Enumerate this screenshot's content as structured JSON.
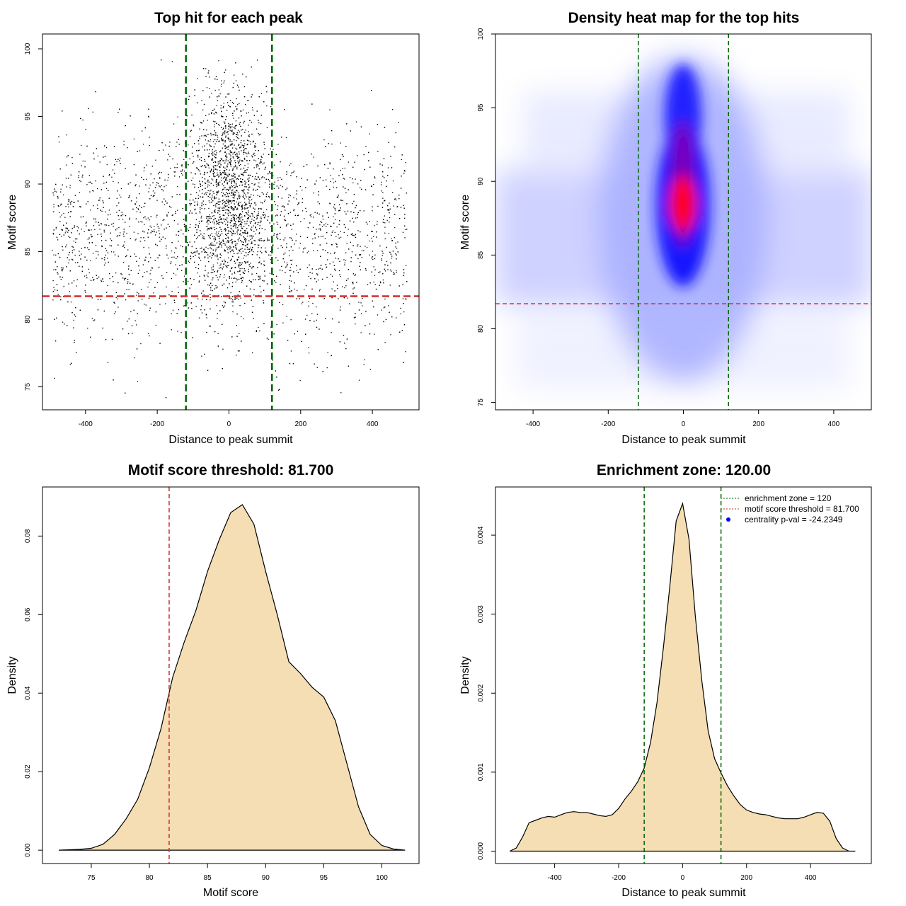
{
  "chart_data": [
    {
      "id": "scatter",
      "type": "scatter",
      "title": "Top hit for each peak",
      "xlabel": "Distance to peak summit",
      "ylabel": "Motif score",
      "xlim": [
        -520,
        530
      ],
      "ylim": [
        73.3,
        101.1
      ],
      "xticks": [
        -400,
        -200,
        0,
        200,
        400
      ],
      "yticks": [
        75,
        80,
        85,
        90,
        95,
        100
      ],
      "point_count": 5200,
      "point_color": "#000000",
      "vlines": [
        -120,
        120
      ],
      "hlines": [
        81.7
      ],
      "vline_color": "#006400",
      "hline_color": "#d22c2c"
    },
    {
      "id": "heatmap",
      "type": "heatmap",
      "title": "Density heat map for the top hits",
      "xlabel": "Distance to peak summit",
      "ylabel": "Motif score",
      "xlim": [
        -500,
        500
      ],
      "ylim": [
        74.5,
        100
      ],
      "xticks": [
        -400,
        -200,
        0,
        200,
        400
      ],
      "yticks": [
        75,
        80,
        85,
        90,
        95,
        100
      ],
      "colors": [
        "#ffffff",
        "#0000ff",
        "#ff0000"
      ],
      "vlines": [
        -120,
        120
      ],
      "hlines": [
        81.7
      ],
      "vline_color": "#006400",
      "hline_color": "#d22c2c"
    },
    {
      "id": "score_density",
      "type": "area",
      "title": "Motif score threshold: 81.700",
      "xlabel": "Motif score",
      "ylabel": "Density",
      "xlim": [
        70.8,
        103.2
      ],
      "ylim": [
        -0.0034,
        0.0925
      ],
      "xticks": [
        75,
        80,
        85,
        90,
        95,
        100
      ],
      "yticks": [
        0.0,
        0.02,
        0.04,
        0.06,
        0.08
      ],
      "ytick_labels": [
        "0.00",
        "0.02",
        "0.04",
        "0.06",
        "0.08"
      ],
      "fill_color": "#f5deb3",
      "x": [
        72.2,
        74,
        75,
        76,
        77,
        78,
        79,
        80,
        81,
        82,
        83,
        84,
        85,
        86,
        87,
        88,
        89,
        90,
        91,
        92,
        93,
        94,
        95,
        96,
        97,
        98,
        99,
        100,
        101,
        102
      ],
      "values": [
        0.0,
        0.0002,
        0.0005,
        0.0015,
        0.004,
        0.008,
        0.013,
        0.021,
        0.031,
        0.044,
        0.053,
        0.061,
        0.071,
        0.079,
        0.086,
        0.088,
        0.083,
        0.071,
        0.06,
        0.048,
        0.045,
        0.0415,
        0.039,
        0.033,
        0.022,
        0.011,
        0.004,
        0.0012,
        0.0003,
        0.0
      ],
      "vlines": [
        81.7
      ],
      "vline_color": "#d22c2c"
    },
    {
      "id": "distance_density",
      "type": "area",
      "title": "Enrichment zone: 120.00",
      "xlabel": "Distance to peak summit",
      "ylabel": "Density",
      "xlim": [
        -585,
        590
      ],
      "ylim": [
        -0.000157,
        0.00461
      ],
      "xticks": [
        -400,
        -200,
        0,
        200,
        400
      ],
      "yticks": [
        0.0,
        0.001,
        0.002,
        0.003,
        0.004
      ],
      "ytick_labels": [
        "0.000",
        "0.001",
        "0.002",
        "0.003",
        "0.004"
      ],
      "fill_color": "#f5deb3",
      "x": [
        -540,
        -520,
        -500,
        -480,
        -460,
        -440,
        -420,
        -400,
        -380,
        -360,
        -340,
        -320,
        -300,
        -280,
        -260,
        -240,
        -220,
        -200,
        -180,
        -160,
        -140,
        -120,
        -100,
        -80,
        -60,
        -40,
        -20,
        0,
        20,
        40,
        60,
        80,
        100,
        120,
        140,
        160,
        180,
        200,
        220,
        240,
        260,
        280,
        300,
        320,
        340,
        360,
        380,
        400,
        420,
        440,
        460,
        480,
        500,
        520,
        540
      ],
      "values": [
        0.0,
        4e-05,
        0.00018,
        0.00036,
        0.00039,
        0.00042,
        0.00044,
        0.00043,
        0.00046,
        0.00049,
        0.0005,
        0.00049,
        0.00049,
        0.00047,
        0.00045,
        0.00044,
        0.00046,
        0.00054,
        0.00066,
        0.00076,
        0.00088,
        0.00105,
        0.00138,
        0.00188,
        0.00258,
        0.00335,
        0.00418,
        0.0044,
        0.00395,
        0.00297,
        0.00216,
        0.00152,
        0.00117,
        0.00099,
        0.00083,
        0.0007,
        0.00059,
        0.00052,
        0.00049,
        0.00047,
        0.00046,
        0.00044,
        0.00042,
        0.00041,
        0.00041,
        0.00041,
        0.00043,
        0.00046,
        0.00049,
        0.00048,
        0.00038,
        0.00016,
        4e-05,
        0.0,
        0.0
      ],
      "vlines": [
        -120,
        120
      ],
      "vline_color": "#006400",
      "legend": {
        "position": "top-right",
        "items": [
          {
            "label": "enrichment zone = 120",
            "color": "#006400",
            "kind": "line"
          },
          {
            "label": "motif score threshold = 81.700",
            "color": "#d22c2c",
            "kind": "line"
          },
          {
            "label": "centrality p-val = -24.2349",
            "color": "#0000ff",
            "kind": "point"
          }
        ]
      }
    }
  ]
}
